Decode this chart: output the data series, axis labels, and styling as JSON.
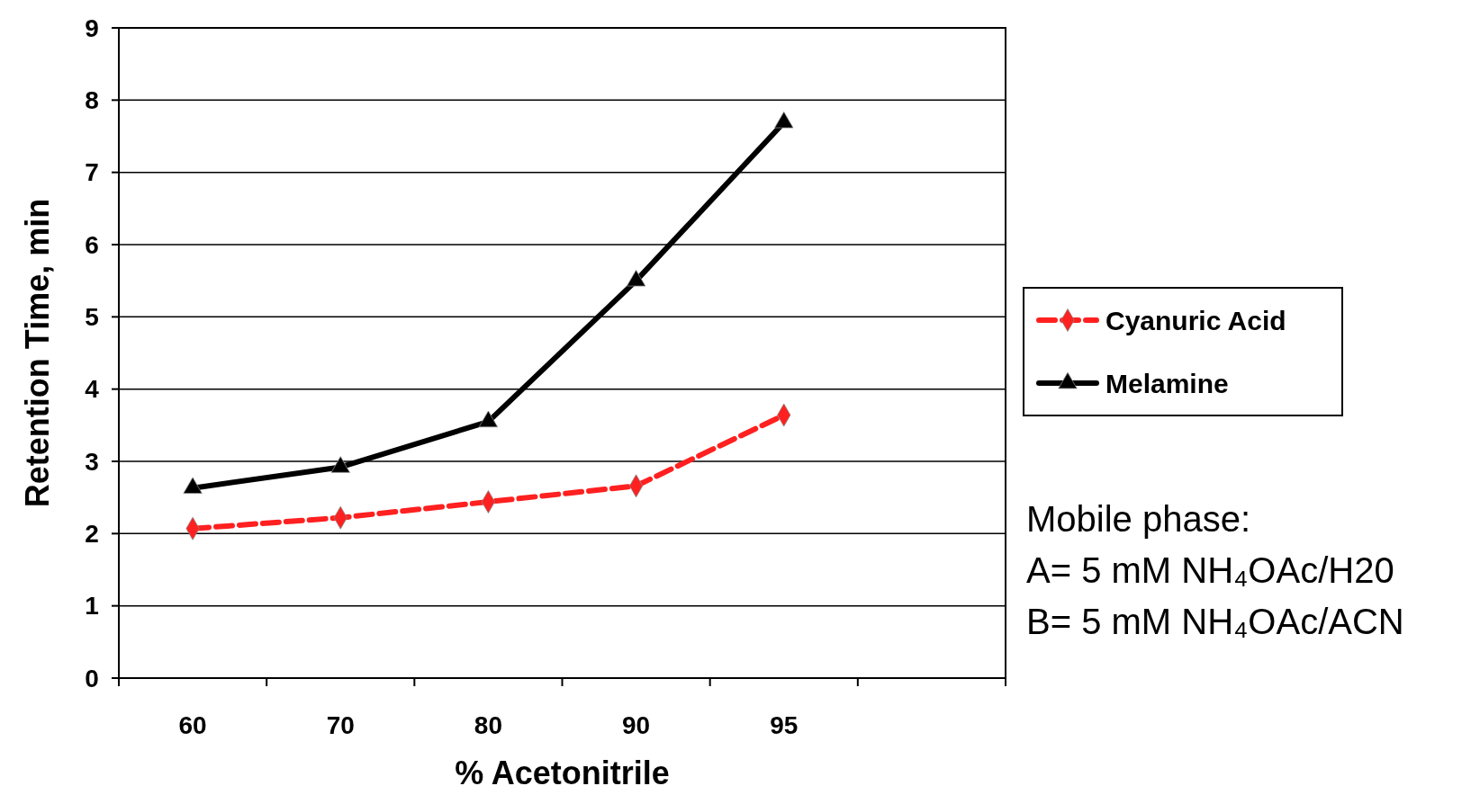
{
  "chart_data": {
    "type": "line",
    "xlabel": "% Acetonitrile",
    "ylabel": "Retention Time, min",
    "categories": [
      "60",
      "70",
      "80",
      "90",
      "95",
      null
    ],
    "series": [
      {
        "name": "Cyanuric Acid",
        "color": "#ff2020",
        "marker": "diamond",
        "line_style": "dashed",
        "values": [
          2.07,
          2.22,
          2.44,
          2.66,
          3.64,
          null
        ]
      },
      {
        "name": "Melamine",
        "color": "#000000",
        "marker": "triangle",
        "line_style": "solid",
        "values": [
          2.63,
          2.92,
          3.55,
          5.5,
          7.69,
          null
        ]
      }
    ],
    "ylim": [
      0,
      9
    ],
    "yticks": [
      0,
      1,
      2,
      3,
      4,
      5,
      6,
      7,
      8,
      9
    ],
    "grid": "y",
    "legend": "right",
    "annotations": [
      "Mobile phase:",
      "A= 5 mM NH₄OAc/H20",
      "B= 5 mM NH₄OAc/ACN"
    ]
  }
}
